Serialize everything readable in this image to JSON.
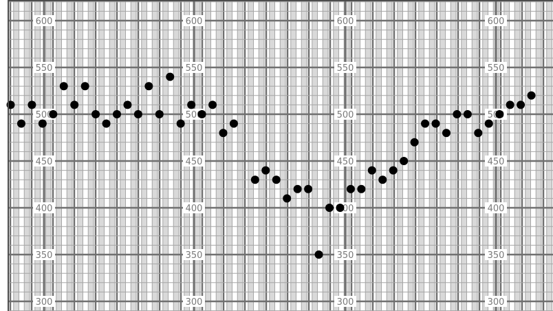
{
  "chart_data": {
    "type": "scatter",
    "title": "",
    "xlabel": "",
    "ylabel": "",
    "ylim": [
      290,
      620
    ],
    "grid": true,
    "legend": "none",
    "y_ticks": [
      "300",
      "350",
      "400",
      "450",
      "500",
      "550",
      "600"
    ],
    "y_axis_repeats": 4,
    "colors": {
      "background": "#ffffff",
      "light_stripe": "#d9d9d9",
      "grid_minor": "#a6a6a6",
      "grid_major": "#707070",
      "tick_label": "#7a7a7a",
      "point": "#000000"
    },
    "series": [
      {
        "values": [
          510,
          490,
          510,
          490,
          500,
          530,
          510,
          530,
          500,
          490,
          500,
          510,
          500,
          530,
          500,
          540,
          490,
          510,
          500,
          510,
          480,
          490,
          null,
          430,
          440,
          430,
          410,
          420,
          420,
          350,
          400,
          400,
          420,
          420,
          440,
          430,
          440,
          450,
          470,
          490,
          490,
          480,
          500,
          500,
          480,
          490,
          500,
          510,
          510,
          520
        ]
      }
    ]
  }
}
